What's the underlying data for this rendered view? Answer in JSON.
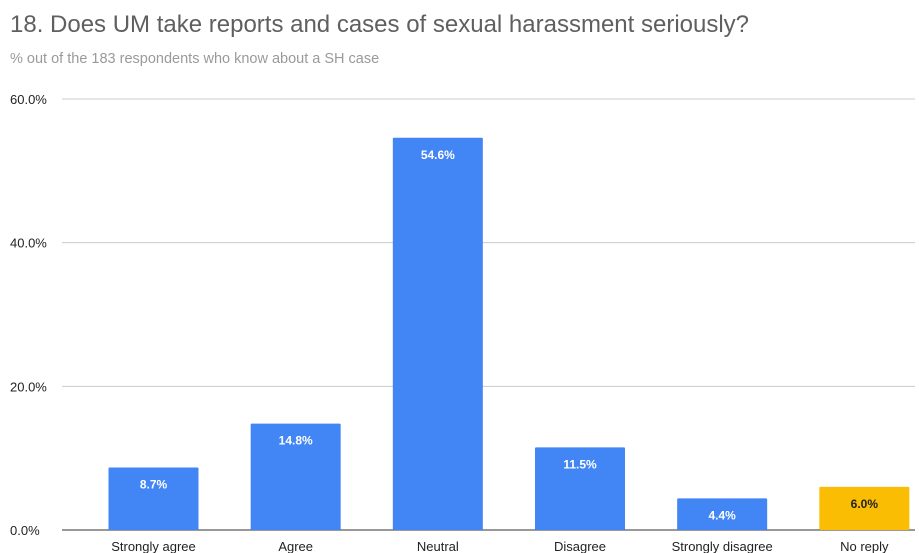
{
  "chart_data": {
    "type": "bar",
    "title": "18. Does UM take reports and cases of sexual harassment seriously?",
    "subtitle": "% out of the 183 respondents who know about a SH case",
    "categories": [
      "Strongly agree",
      "Agree",
      "Neutral",
      "Disagree",
      "Strongly disagree",
      "No reply"
    ],
    "values": [
      8.7,
      14.8,
      54.6,
      11.5,
      4.4,
      6.0
    ],
    "value_labels": [
      "8.7%",
      "14.8%",
      "54.6%",
      "11.5%",
      "4.4%",
      "6.0%"
    ],
    "bar_colors": [
      "#4285f4",
      "#4285f4",
      "#4285f4",
      "#4285f4",
      "#4285f4",
      "#fbbc04"
    ],
    "label_colors": [
      "#ffffff",
      "#ffffff",
      "#ffffff",
      "#ffffff",
      "#ffffff",
      "#222222"
    ],
    "ylim": [
      0,
      60
    ],
    "yticks": [
      0,
      20,
      40,
      60
    ],
    "ytick_labels": [
      "0.0%",
      "20.0%",
      "40.0%",
      "60.0%"
    ],
    "grid": true,
    "gridline_color": "#cccccc",
    "xlabel": "",
    "ylabel": "",
    "legend": "none"
  }
}
